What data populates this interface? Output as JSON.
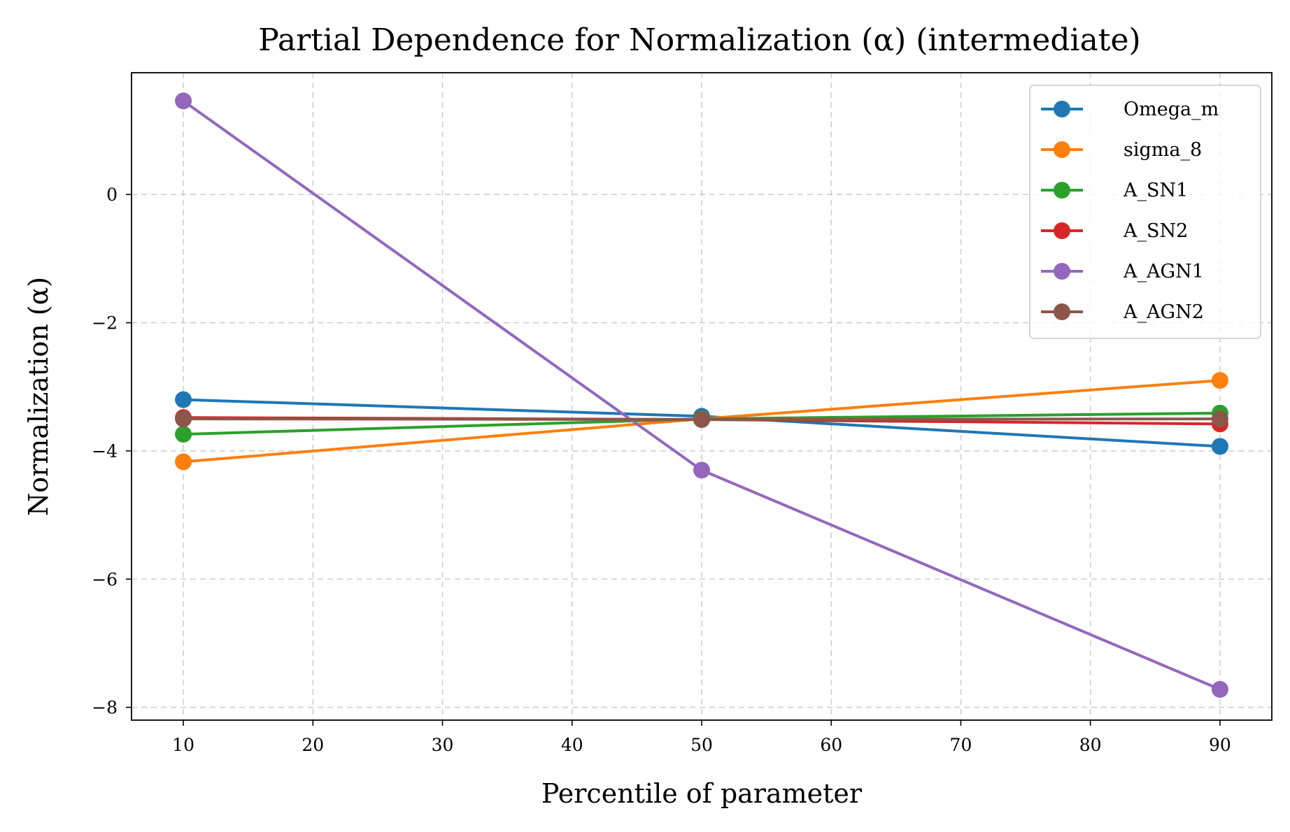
{
  "chart_data": {
    "type": "line",
    "title": "Partial Dependence for Normalization (α) (intermediate)",
    "xlabel": "Percentile of parameter",
    "ylabel": "Normalization (α)",
    "x": [
      10,
      50,
      90
    ],
    "xlim": [
      6,
      94
    ],
    "ylim": [
      -8.2,
      1.9
    ],
    "xticks": [
      10,
      20,
      30,
      40,
      50,
      60,
      70,
      80,
      90
    ],
    "xtick_labels": [
      "10",
      "20",
      "30",
      "40",
      "50",
      "60",
      "70",
      "80",
      "90"
    ],
    "yticks": [
      -8,
      -6,
      -4,
      -2,
      0
    ],
    "ytick_labels": [
      "−8",
      "−6",
      "−4",
      "−2",
      "0"
    ],
    "grid": true,
    "legend_position": "top-right",
    "series": [
      {
        "name": "Omega_m",
        "color": "#1f77b4",
        "values": [
          -3.2,
          -3.46,
          -3.93
        ]
      },
      {
        "name": "sigma_8",
        "color": "#ff7f0e",
        "values": [
          -4.17,
          -3.5,
          -2.9
        ]
      },
      {
        "name": "A_SN1",
        "color": "#2ca02c",
        "values": [
          -3.74,
          -3.5,
          -3.41
        ]
      },
      {
        "name": "A_SN2",
        "color": "#d62728",
        "values": [
          -3.48,
          -3.51,
          -3.58
        ]
      },
      {
        "name": "A_AGN1",
        "color": "#9467bd",
        "values": [
          1.46,
          -4.3,
          -7.72
        ]
      },
      {
        "name": "A_AGN2",
        "color": "#8c564b",
        "values": [
          -3.5,
          -3.51,
          -3.5
        ]
      }
    ]
  }
}
